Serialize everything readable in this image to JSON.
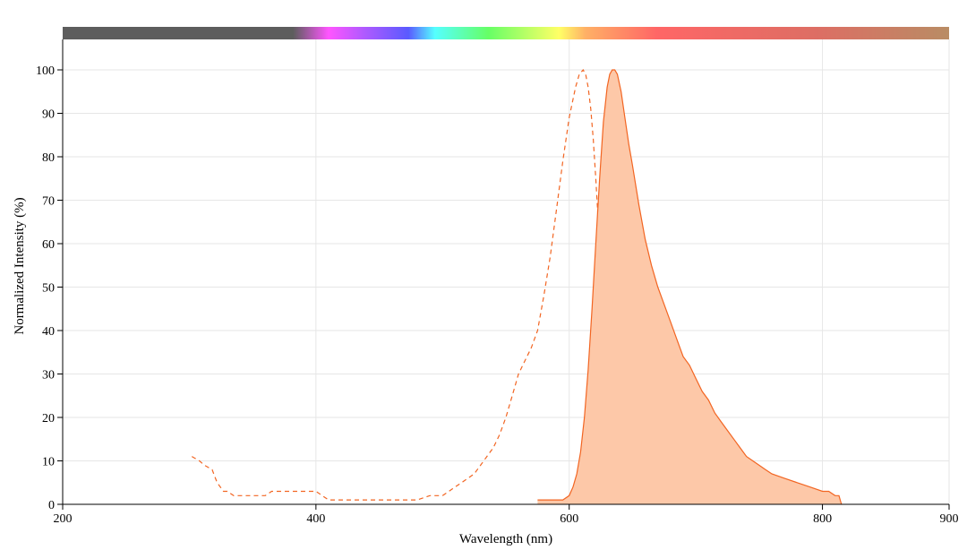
{
  "chart_data": {
    "type": "area",
    "xlabel": "Wavelength (nm)",
    "ylabel": "Normalized Intensity (%)",
    "xlim": [
      200,
      900
    ],
    "ylim": [
      0,
      100
    ],
    "xticks": [
      200,
      400,
      600,
      800,
      900
    ],
    "yticks": [
      0,
      10,
      20,
      30,
      40,
      50,
      60,
      70,
      80,
      90,
      100
    ],
    "grid": true,
    "legend": "none",
    "spectrum_bar": true,
    "series": [
      {
        "style": "dashed-line",
        "color": "#f26522",
        "x": [
          302,
          308,
          312,
          318,
          322,
          327,
          330,
          335,
          340,
          350,
          360,
          365,
          370,
          380,
          390,
          400,
          405,
          410,
          420,
          440,
          460,
          480,
          490,
          500,
          505,
          510,
          515,
          520,
          525,
          530,
          535,
          540,
          545,
          550,
          555,
          560,
          565,
          570,
          575,
          580,
          585,
          590,
          595,
          600,
          605,
          608,
          611,
          613,
          615,
          617,
          619,
          621,
          623,
          625,
          627,
          629,
          631,
          634,
          637,
          640,
          643,
          646,
          650,
          655,
          660,
          665
        ],
        "y": [
          11,
          10,
          9,
          8,
          5,
          3,
          3,
          2,
          2,
          2,
          2,
          3,
          3,
          3,
          3,
          3,
          2,
          1,
          1,
          1,
          1,
          1,
          2,
          2,
          3,
          4,
          5,
          6,
          7,
          9,
          11,
          13,
          16,
          20,
          25,
          30,
          33,
          36,
          40,
          48,
          57,
          68,
          79,
          89,
          96,
          99,
          100,
          99,
          96,
          91,
          84,
          75,
          65,
          55,
          44,
          34,
          26,
          17,
          11,
          6,
          4,
          3,
          2,
          1,
          0.5,
          0
        ]
      },
      {
        "style": "filled-area",
        "color": "#f26522",
        "fill": "#fdc8a8",
        "x": [
          575,
          580,
          585,
          590,
          595,
          600,
          603,
          606,
          609,
          612,
          615,
          618,
          621,
          624,
          627,
          630,
          632,
          634,
          636,
          638,
          641,
          644,
          647,
          650,
          655,
          660,
          665,
          670,
          675,
          680,
          685,
          690,
          695,
          700,
          705,
          710,
          715,
          720,
          725,
          730,
          735,
          740,
          745,
          750,
          755,
          760,
          770,
          780,
          790,
          800,
          805,
          810,
          813,
          815
        ],
        "y": [
          1,
          1,
          1,
          1,
          1,
          2,
          4,
          7,
          12,
          20,
          31,
          45,
          60,
          75,
          88,
          96,
          99,
          100,
          100,
          99,
          95,
          89,
          83,
          78,
          69,
          61,
          55,
          50,
          46,
          42,
          38,
          34,
          32,
          29,
          26,
          24,
          21,
          19,
          17,
          15,
          13,
          11,
          10,
          9,
          8,
          7,
          6,
          5,
          4,
          3,
          3,
          2,
          2,
          0
        ]
      }
    ]
  }
}
